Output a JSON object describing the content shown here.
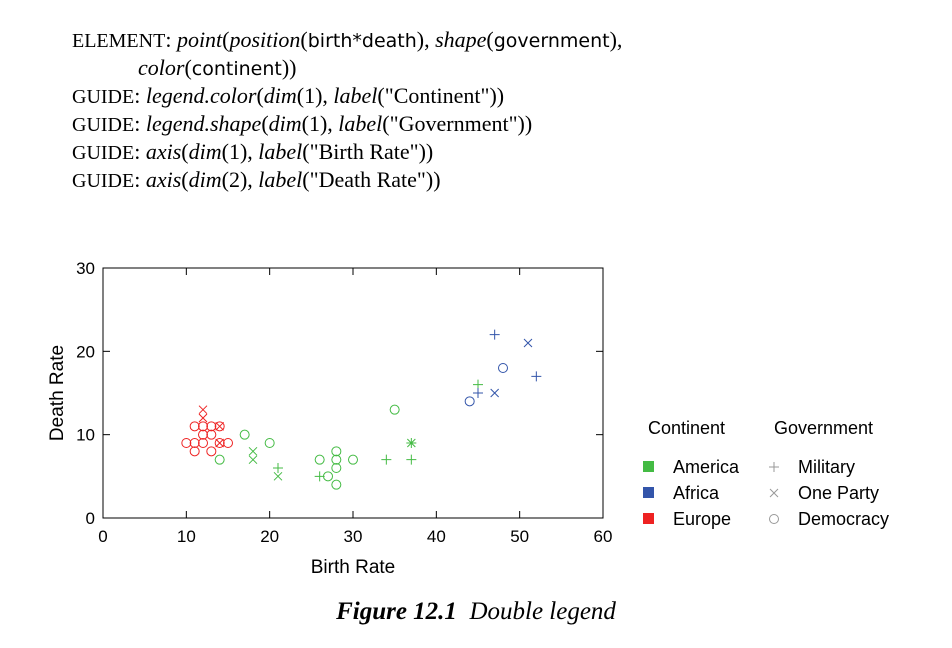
{
  "spec": {
    "element_keyword": "ELEMENT",
    "guide_keyword": "GUIDE",
    "lines": [
      [
        [
          "kw",
          "ELEMENT"
        ],
        [
          "t",
          ": "
        ],
        [
          "i",
          "point"
        ],
        [
          "t",
          "("
        ],
        [
          "i",
          "position"
        ],
        [
          "t",
          "("
        ],
        [
          "s",
          "birth*death"
        ],
        [
          "t",
          "), "
        ],
        [
          "i",
          "shape"
        ],
        [
          "t",
          "("
        ],
        [
          "s",
          "government"
        ],
        [
          "t",
          "),"
        ]
      ],
      [
        [
          "t",
          "            "
        ],
        [
          "i",
          "color"
        ],
        [
          "t",
          "("
        ],
        [
          "s",
          "continent"
        ],
        [
          "t",
          "))"
        ]
      ],
      [
        [
          "kw",
          "GUIDE"
        ],
        [
          "t",
          ": "
        ],
        [
          "i",
          "legend.color"
        ],
        [
          "t",
          "("
        ],
        [
          "i",
          "dim"
        ],
        [
          "t",
          "(1), "
        ],
        [
          "i",
          "label"
        ],
        [
          "t",
          "(\"Continent\"))"
        ]
      ],
      [
        [
          "kw",
          "GUIDE"
        ],
        [
          "t",
          ": "
        ],
        [
          "i",
          "legend.shape"
        ],
        [
          "t",
          "("
        ],
        [
          "i",
          "dim"
        ],
        [
          "t",
          "(1), "
        ],
        [
          "i",
          "label"
        ],
        [
          "t",
          "(\"Government\"))"
        ]
      ],
      [
        [
          "kw",
          "GUIDE"
        ],
        [
          "t",
          ": "
        ],
        [
          "i",
          "axis"
        ],
        [
          "t",
          "("
        ],
        [
          "i",
          "dim"
        ],
        [
          "t",
          "(1), "
        ],
        [
          "i",
          "label"
        ],
        [
          "t",
          "(\"Birth Rate\"))"
        ]
      ],
      [
        [
          "kw",
          "GUIDE"
        ],
        [
          "t",
          ": "
        ],
        [
          "i",
          "axis"
        ],
        [
          "t",
          "("
        ],
        [
          "i",
          "dim"
        ],
        [
          "t",
          "(2), "
        ],
        [
          "i",
          "label"
        ],
        [
          "t",
          "(\"Death Rate\"))"
        ]
      ]
    ]
  },
  "caption": {
    "label": "Figure 12.1",
    "text": "Double legend"
  },
  "chart_data": {
    "type": "scatter",
    "xlabel": "Birth Rate",
    "ylabel": "Death Rate",
    "xlim": [
      0,
      60
    ],
    "ylim": [
      0,
      30
    ],
    "xticks": [
      0,
      10,
      20,
      30,
      40,
      50,
      60
    ],
    "yticks": [
      0,
      10,
      20,
      30
    ],
    "grid": false,
    "legends": {
      "placement": "right",
      "color": {
        "title": "Continent",
        "entries": [
          {
            "label": "America",
            "color": "#44bb44"
          },
          {
            "label": "Africa",
            "color": "#3355aa"
          },
          {
            "label": "Europe",
            "color": "#ee2222"
          }
        ]
      },
      "shape": {
        "title": "Government",
        "entries": [
          {
            "label": "Military",
            "marker": "plus"
          },
          {
            "label": "One Party",
            "marker": "cross"
          },
          {
            "label": "Democracy",
            "marker": "circle"
          }
        ]
      }
    },
    "points": [
      {
        "x": 10,
        "y": 9,
        "continent": "Europe",
        "government": "Democracy"
      },
      {
        "x": 11,
        "y": 11,
        "continent": "Europe",
        "government": "Democracy"
      },
      {
        "x": 11,
        "y": 9,
        "continent": "Europe",
        "government": "Democracy"
      },
      {
        "x": 11,
        "y": 8,
        "continent": "Europe",
        "government": "Democracy"
      },
      {
        "x": 12,
        "y": 13,
        "continent": "Europe",
        "government": "One Party"
      },
      {
        "x": 12,
        "y": 12,
        "continent": "Europe",
        "government": "One Party"
      },
      {
        "x": 12,
        "y": 11,
        "continent": "Europe",
        "government": "Democracy"
      },
      {
        "x": 12,
        "y": 10,
        "continent": "Europe",
        "government": "Democracy"
      },
      {
        "x": 12,
        "y": 9,
        "continent": "Europe",
        "government": "Democracy"
      },
      {
        "x": 13,
        "y": 11,
        "continent": "Europe",
        "government": "Democracy"
      },
      {
        "x": 13,
        "y": 10,
        "continent": "Europe",
        "government": "Democracy"
      },
      {
        "x": 13,
        "y": 8,
        "continent": "Europe",
        "government": "Democracy"
      },
      {
        "x": 14,
        "y": 11,
        "continent": "Europe",
        "government": "One Party"
      },
      {
        "x": 14,
        "y": 11,
        "continent": "Europe",
        "government": "Democracy"
      },
      {
        "x": 14,
        "y": 9,
        "continent": "Europe",
        "government": "One Party"
      },
      {
        "x": 14,
        "y": 9,
        "continent": "Europe",
        "government": "Democracy"
      },
      {
        "x": 15,
        "y": 9,
        "continent": "Europe",
        "government": "Democracy"
      },
      {
        "x": 14,
        "y": 7,
        "continent": "America",
        "government": "Democracy"
      },
      {
        "x": 17,
        "y": 10,
        "continent": "America",
        "government": "Democracy"
      },
      {
        "x": 18,
        "y": 8,
        "continent": "America",
        "government": "One Party"
      },
      {
        "x": 18,
        "y": 7,
        "continent": "America",
        "government": "One Party"
      },
      {
        "x": 20,
        "y": 9,
        "continent": "America",
        "government": "Democracy"
      },
      {
        "x": 21,
        "y": 6,
        "continent": "America",
        "government": "Military"
      },
      {
        "x": 21,
        "y": 5,
        "continent": "America",
        "government": "One Party"
      },
      {
        "x": 26,
        "y": 7,
        "continent": "America",
        "government": "Democracy"
      },
      {
        "x": 26,
        "y": 5,
        "continent": "America",
        "government": "Military"
      },
      {
        "x": 27,
        "y": 5,
        "continent": "America",
        "government": "Democracy"
      },
      {
        "x": 28,
        "y": 8,
        "continent": "America",
        "government": "Democracy"
      },
      {
        "x": 28,
        "y": 7,
        "continent": "America",
        "government": "Democracy"
      },
      {
        "x": 28,
        "y": 6,
        "continent": "America",
        "government": "Democracy"
      },
      {
        "x": 28,
        "y": 4,
        "continent": "America",
        "government": "Democracy"
      },
      {
        "x": 30,
        "y": 7,
        "continent": "America",
        "government": "Democracy"
      },
      {
        "x": 34,
        "y": 7,
        "continent": "America",
        "government": "Military"
      },
      {
        "x": 35,
        "y": 13,
        "continent": "America",
        "government": "Democracy"
      },
      {
        "x": 37,
        "y": 9,
        "continent": "America",
        "government": "Military"
      },
      {
        "x": 37,
        "y": 9,
        "continent": "America",
        "government": "One Party"
      },
      {
        "x": 37,
        "y": 7,
        "continent": "America",
        "government": "Military"
      },
      {
        "x": 45,
        "y": 16,
        "continent": "America",
        "government": "Military"
      },
      {
        "x": 44,
        "y": 14,
        "continent": "Africa",
        "government": "Democracy"
      },
      {
        "x": 45,
        "y": 15,
        "continent": "Africa",
        "government": "Military"
      },
      {
        "x": 47,
        "y": 22,
        "continent": "Africa",
        "government": "Military"
      },
      {
        "x": 47,
        "y": 15,
        "continent": "Africa",
        "government": "One Party"
      },
      {
        "x": 48,
        "y": 18,
        "continent": "Africa",
        "government": "Democracy"
      },
      {
        "x": 51,
        "y": 21,
        "continent": "Africa",
        "government": "One Party"
      },
      {
        "x": 52,
        "y": 17,
        "continent": "Africa",
        "government": "Military"
      }
    ]
  }
}
